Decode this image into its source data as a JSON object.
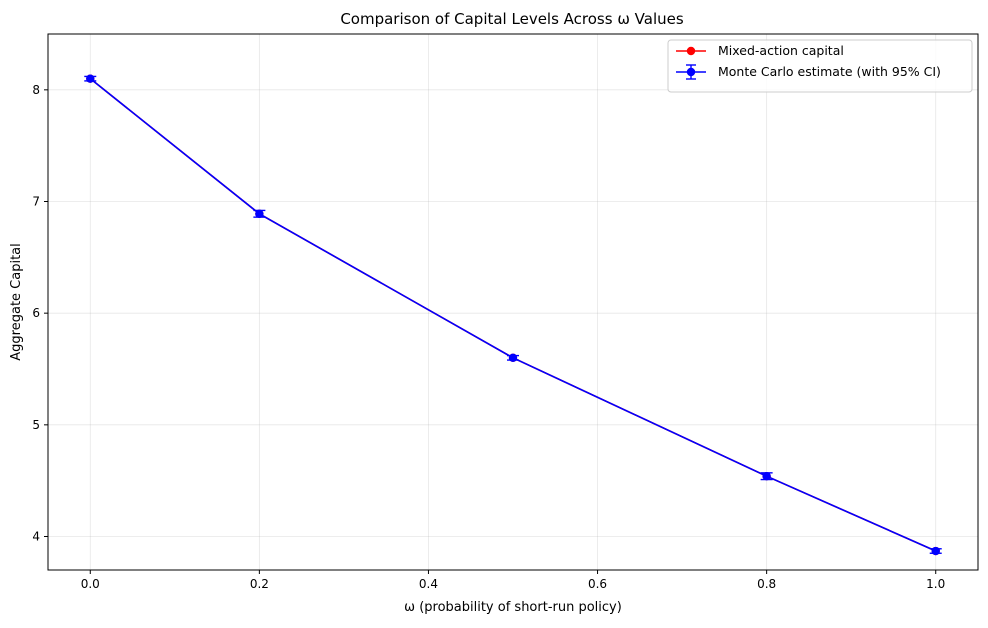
{
  "chart_data": {
    "type": "line",
    "title": "Comparison of Capital Levels Across ω Values",
    "xlabel": "ω (probability of short-run policy)",
    "ylabel": "Aggregate Capital",
    "xlim": [
      -0.05,
      1.05
    ],
    "ylim": [
      3.7,
      8.5
    ],
    "xticks": [
      "0.0",
      "0.2",
      "0.4",
      "0.6",
      "0.8",
      "1.0"
    ],
    "xtick_values": [
      0.0,
      0.2,
      0.4,
      0.6,
      0.8,
      1.0
    ],
    "yticks": [
      "4",
      "5",
      "6",
      "7",
      "8"
    ],
    "ytick_values": [
      4,
      5,
      6,
      7,
      8
    ],
    "grid": true,
    "legend_position": "top-right",
    "x": [
      0.0,
      0.2,
      0.5,
      0.8,
      1.0
    ],
    "series": [
      {
        "name": "Mixed-action capital",
        "color": "#ff0000",
        "marker": "circle",
        "values": [
          8.1,
          6.89,
          5.6,
          4.54,
          3.87
        ]
      },
      {
        "name": "Monte Carlo estimate (with 95% CI)",
        "color": "#0000ff",
        "marker": "circle",
        "errorbars": true,
        "values": [
          8.1,
          6.89,
          5.6,
          4.54,
          3.87
        ],
        "ci_half_width": [
          0.02,
          0.03,
          0.02,
          0.03,
          0.02
        ]
      }
    ]
  }
}
